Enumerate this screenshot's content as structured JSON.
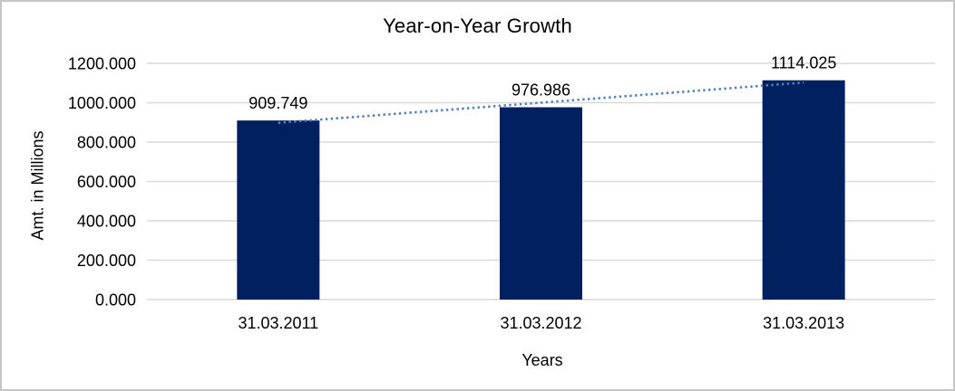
{
  "chart_data": {
    "type": "bar",
    "title": "Year-on-Year Growth",
    "xlabel": "Years",
    "ylabel": "Amt. in Millions",
    "categories": [
      "31.03.2011",
      "31.03.2012",
      "31.03.2013"
    ],
    "values": [
      909.749,
      976.986,
      1114.025
    ],
    "value_labels": [
      "909.749",
      "976.986",
      "1114.025"
    ],
    "ylim": [
      0,
      1200
    ],
    "ytick_step": 200,
    "ytick_labels": [
      "0.000",
      "200.000",
      "400.000",
      "600.000",
      "800.000",
      "1000.000",
      "1200.000"
    ],
    "grid": true,
    "legend": "none",
    "trendline": {
      "type": "linear",
      "style": "dotted"
    },
    "colors": {
      "bar": "#002060",
      "trendline": "#4f81bd",
      "gridline": "#d9d9d9",
      "text": "#000000",
      "background": "#ffffff",
      "frame_border": "#c6c6c6"
    }
  }
}
